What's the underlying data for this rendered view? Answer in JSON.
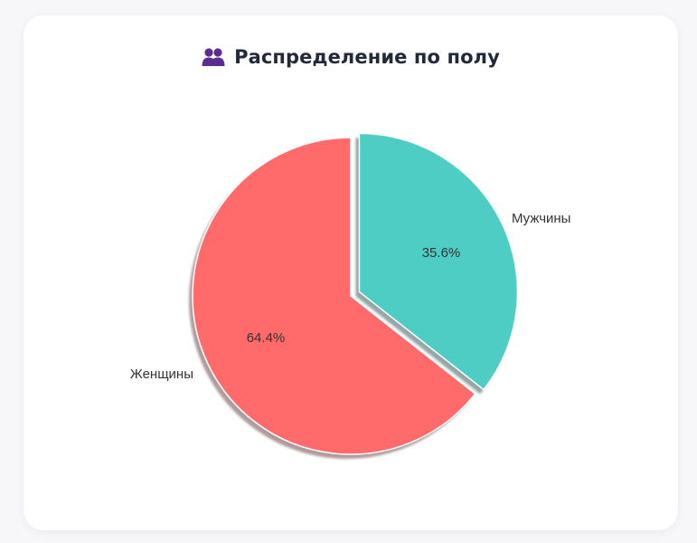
{
  "card": {
    "title": "Распределение по полу",
    "title_icon": "people-icon",
    "icon_color": "#5b2d8e"
  },
  "chart_data": {
    "type": "pie",
    "title": "Распределение по полу",
    "categories": [
      "Женщины",
      "Мужчины"
    ],
    "values": [
      64.4,
      35.6
    ],
    "labels_pct": [
      "64.4%",
      "35.6%"
    ],
    "colors": [
      "#ff6b6b",
      "#4ecdc4"
    ],
    "explode": [
      0,
      0.03
    ],
    "shadow": true,
    "start_angle": 90,
    "legend": "none"
  }
}
